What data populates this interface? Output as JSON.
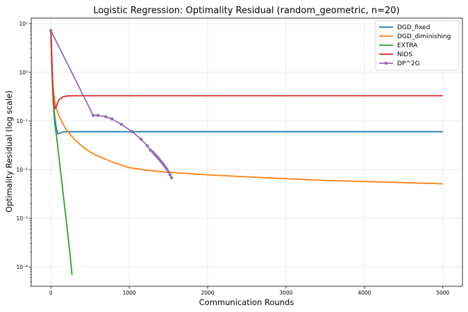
{
  "chart_data": {
    "type": "line",
    "title": "Logistic Regression: Optimality Residual (random_geometric, n=20)",
    "xlabel": "Communication Rounds",
    "ylabel": "Optimality Residual (log scale)",
    "xscale": "linear",
    "yscale": "log",
    "xlim": [
      -250,
      5250
    ],
    "ylim": [
      4e-05,
      13
    ],
    "xticks": [
      0,
      1000,
      2000,
      3000,
      4000,
      5000
    ],
    "xtick_labels": [
      "0",
      "1000",
      "2000",
      "3000",
      "4000",
      "5000"
    ],
    "yticks": [
      0.0001,
      0.001,
      0.01,
      0.1,
      1,
      10
    ],
    "ytick_labels": [
      "10⁻⁴",
      "10⁻³",
      "10⁻²",
      "10⁻¹",
      "10⁰",
      "10¹"
    ],
    "grid": true,
    "legend_position": "top-right",
    "series": [
      {
        "name": "DGD_fixed",
        "color": "#1f77b4",
        "marker": false,
        "x": [
          0,
          10,
          20,
          30,
          50,
          70,
          90,
          120,
          150,
          200,
          300,
          500,
          1000,
          2000,
          3000,
          4000,
          5000
        ],
        "y": [
          7.0,
          2.0,
          0.7,
          0.3,
          0.12,
          0.07,
          0.054,
          0.056,
          0.059,
          0.06,
          0.06,
          0.06,
          0.06,
          0.06,
          0.06,
          0.06,
          0.06
        ]
      },
      {
        "name": "DGD_diminishing",
        "color": "#ff7f0e",
        "marker": false,
        "x": [
          0,
          10,
          20,
          30,
          50,
          75,
          100,
          150,
          200,
          300,
          400,
          500,
          600,
          800,
          1000,
          1200,
          1500,
          2000,
          2500,
          3000,
          3500,
          4000,
          4500,
          5000
        ],
        "y": [
          7.0,
          2.0,
          0.8,
          0.45,
          0.25,
          0.17,
          0.13,
          0.09,
          0.065,
          0.042,
          0.03,
          0.023,
          0.019,
          0.014,
          0.011,
          0.0098,
          0.0088,
          0.0078,
          0.0071,
          0.0065,
          0.006,
          0.0057,
          0.0054,
          0.0051
        ]
      },
      {
        "name": "EXTRA",
        "color": "#2ca02c",
        "marker": false,
        "x": [
          0,
          10,
          20,
          30,
          50,
          75,
          100,
          150,
          200,
          250,
          270
        ],
        "y": [
          7.0,
          2.0,
          0.6,
          0.25,
          0.09,
          0.045,
          0.02,
          0.004,
          0.0008,
          0.00015,
          6.8e-05
        ]
      },
      {
        "name": "NIDS",
        "color": "#d62728",
        "marker": false,
        "x": [
          0,
          10,
          20,
          30,
          40,
          50,
          70,
          100,
          150,
          200,
          300,
          500,
          1000,
          2000,
          3000,
          4000,
          5000
        ],
        "y": [
          7.0,
          2.5,
          0.8,
          0.35,
          0.22,
          0.18,
          0.2,
          0.27,
          0.31,
          0.325,
          0.33,
          0.33,
          0.33,
          0.33,
          0.33,
          0.33,
          0.33
        ]
      },
      {
        "name": "DP^2G",
        "color": "#9467bd",
        "marker": true,
        "x": [
          0,
          540,
          600,
          700,
          780,
          900,
          1040,
          1150,
          1230,
          1270,
          1300,
          1320,
          1340,
          1360,
          1380,
          1400,
          1420,
          1440,
          1460,
          1480,
          1500,
          1520,
          1540
        ],
        "y": [
          7.2,
          0.13,
          0.13,
          0.122,
          0.11,
          0.085,
          0.06,
          0.042,
          0.031,
          0.025,
          0.023,
          0.021,
          0.0195,
          0.018,
          0.0165,
          0.015,
          0.0138,
          0.0125,
          0.0113,
          0.0102,
          0.009,
          0.0078,
          0.0068
        ]
      }
    ]
  }
}
